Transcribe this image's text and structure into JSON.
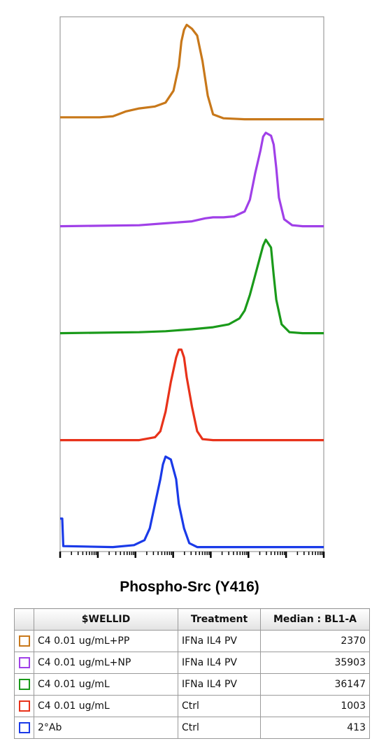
{
  "chart_data": {
    "type": "line",
    "xlabel": "Phospho-Src (Y416)",
    "x_scale": "log",
    "layout": "stacked offset histograms (top to bottom)",
    "series": [
      {
        "name": "C4 0.01 ug/mL+PP",
        "treatment": "IFNa IL4 PV",
        "median": "2370",
        "color": "#c8781a",
        "points": [
          [
            0.0,
            0.03
          ],
          [
            0.15,
            0.03
          ],
          [
            0.2,
            0.04
          ],
          [
            0.22,
            0.06
          ],
          [
            0.25,
            0.09
          ],
          [
            0.3,
            0.12
          ],
          [
            0.36,
            0.14
          ],
          [
            0.4,
            0.18
          ],
          [
            0.43,
            0.3
          ],
          [
            0.45,
            0.55
          ],
          [
            0.46,
            0.8
          ],
          [
            0.47,
            0.92
          ],
          [
            0.48,
            0.97
          ],
          [
            0.5,
            0.93
          ],
          [
            0.52,
            0.86
          ],
          [
            0.54,
            0.6
          ],
          [
            0.56,
            0.25
          ],
          [
            0.58,
            0.06
          ],
          [
            0.62,
            0.02
          ],
          [
            0.7,
            0.01
          ],
          [
            1.0,
            0.01
          ]
        ]
      },
      {
        "name": "C4 0.01 ug/mL+NP",
        "treatment": "IFNa IL4 PV",
        "median": "35903",
        "color": "#a040e8",
        "points": [
          [
            0.0,
            0.01
          ],
          [
            0.3,
            0.02
          ],
          [
            0.4,
            0.04
          ],
          [
            0.5,
            0.06
          ],
          [
            0.55,
            0.09
          ],
          [
            0.58,
            0.1
          ],
          [
            0.62,
            0.1
          ],
          [
            0.66,
            0.11
          ],
          [
            0.7,
            0.16
          ],
          [
            0.72,
            0.28
          ],
          [
            0.74,
            0.55
          ],
          [
            0.76,
            0.78
          ],
          [
            0.77,
            0.92
          ],
          [
            0.78,
            0.96
          ],
          [
            0.8,
            0.93
          ],
          [
            0.81,
            0.84
          ],
          [
            0.82,
            0.6
          ],
          [
            0.83,
            0.3
          ],
          [
            0.85,
            0.08
          ],
          [
            0.88,
            0.02
          ],
          [
            0.92,
            0.01
          ],
          [
            1.0,
            0.01
          ]
        ]
      },
      {
        "name": "C4 0.01 ug/mL",
        "treatment": "IFNa IL4 PV",
        "median": "36147",
        "color": "#1a9a1a",
        "points": [
          [
            0.0,
            0.01
          ],
          [
            0.3,
            0.02
          ],
          [
            0.4,
            0.03
          ],
          [
            0.5,
            0.05
          ],
          [
            0.58,
            0.07
          ],
          [
            0.64,
            0.1
          ],
          [
            0.68,
            0.16
          ],
          [
            0.7,
            0.24
          ],
          [
            0.72,
            0.4
          ],
          [
            0.74,
            0.6
          ],
          [
            0.76,
            0.8
          ],
          [
            0.77,
            0.9
          ],
          [
            0.78,
            0.96
          ],
          [
            0.8,
            0.88
          ],
          [
            0.81,
            0.6
          ],
          [
            0.82,
            0.35
          ],
          [
            0.84,
            0.1
          ],
          [
            0.87,
            0.02
          ],
          [
            0.92,
            0.01
          ],
          [
            1.0,
            0.01
          ]
        ]
      },
      {
        "name": "C4 0.01 ug/mL",
        "treatment": "Ctrl",
        "median": "1003",
        "color": "#e8321a",
        "points": [
          [
            0.0,
            0.01
          ],
          [
            0.3,
            0.01
          ],
          [
            0.36,
            0.04
          ],
          [
            0.38,
            0.1
          ],
          [
            0.4,
            0.3
          ],
          [
            0.42,
            0.6
          ],
          [
            0.44,
            0.85
          ],
          [
            0.45,
            0.93
          ],
          [
            0.46,
            0.93
          ],
          [
            0.47,
            0.85
          ],
          [
            0.48,
            0.65
          ],
          [
            0.5,
            0.35
          ],
          [
            0.52,
            0.1
          ],
          [
            0.54,
            0.02
          ],
          [
            0.58,
            0.01
          ],
          [
            1.0,
            0.01
          ]
        ]
      },
      {
        "name": "2°Ab",
        "treatment": "Ctrl",
        "median": "413",
        "color": "#1a3ae8",
        "points": [
          [
            0.0,
            0.3
          ],
          [
            0.008,
            0.3
          ],
          [
            0.012,
            0.02
          ],
          [
            0.2,
            0.01
          ],
          [
            0.28,
            0.03
          ],
          [
            0.32,
            0.08
          ],
          [
            0.34,
            0.2
          ],
          [
            0.36,
            0.45
          ],
          [
            0.38,
            0.7
          ],
          [
            0.39,
            0.85
          ],
          [
            0.4,
            0.93
          ],
          [
            0.42,
            0.9
          ],
          [
            0.44,
            0.7
          ],
          [
            0.45,
            0.45
          ],
          [
            0.47,
            0.2
          ],
          [
            0.49,
            0.05
          ],
          [
            0.52,
            0.01
          ],
          [
            1.0,
            0.01
          ]
        ]
      }
    ]
  },
  "table": {
    "headers": {
      "wellid": "$WELLID",
      "treatment": "Treatment",
      "median": "Median : BL1-A"
    }
  }
}
